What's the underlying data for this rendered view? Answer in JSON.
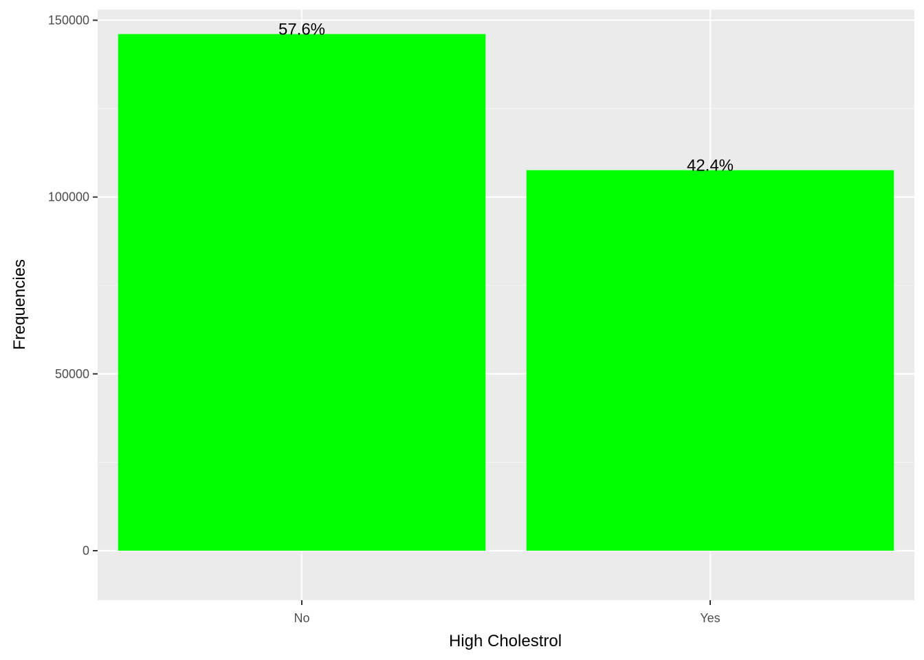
{
  "chart_data": {
    "type": "bar",
    "title": "",
    "xlabel": "High Cholestrol",
    "ylabel": "Frequencies",
    "categories": [
      "No",
      "Yes"
    ],
    "values": [
      146089,
      107591
    ],
    "data_labels": [
      "57.6%",
      "42.4%"
    ],
    "ylim": [
      -14000,
      153000
    ],
    "yticks": [
      0,
      50000,
      100000,
      150000
    ],
    "ytick_labels": [
      "0",
      "50000",
      "100000",
      "150000"
    ],
    "grid": true,
    "legend": "none"
  },
  "colors": {
    "bar": "#00ff00",
    "panel": "#ebebeb",
    "grid_major": "#ffffff",
    "grid_minor": "#f5f5f5",
    "tick": "#333333"
  }
}
